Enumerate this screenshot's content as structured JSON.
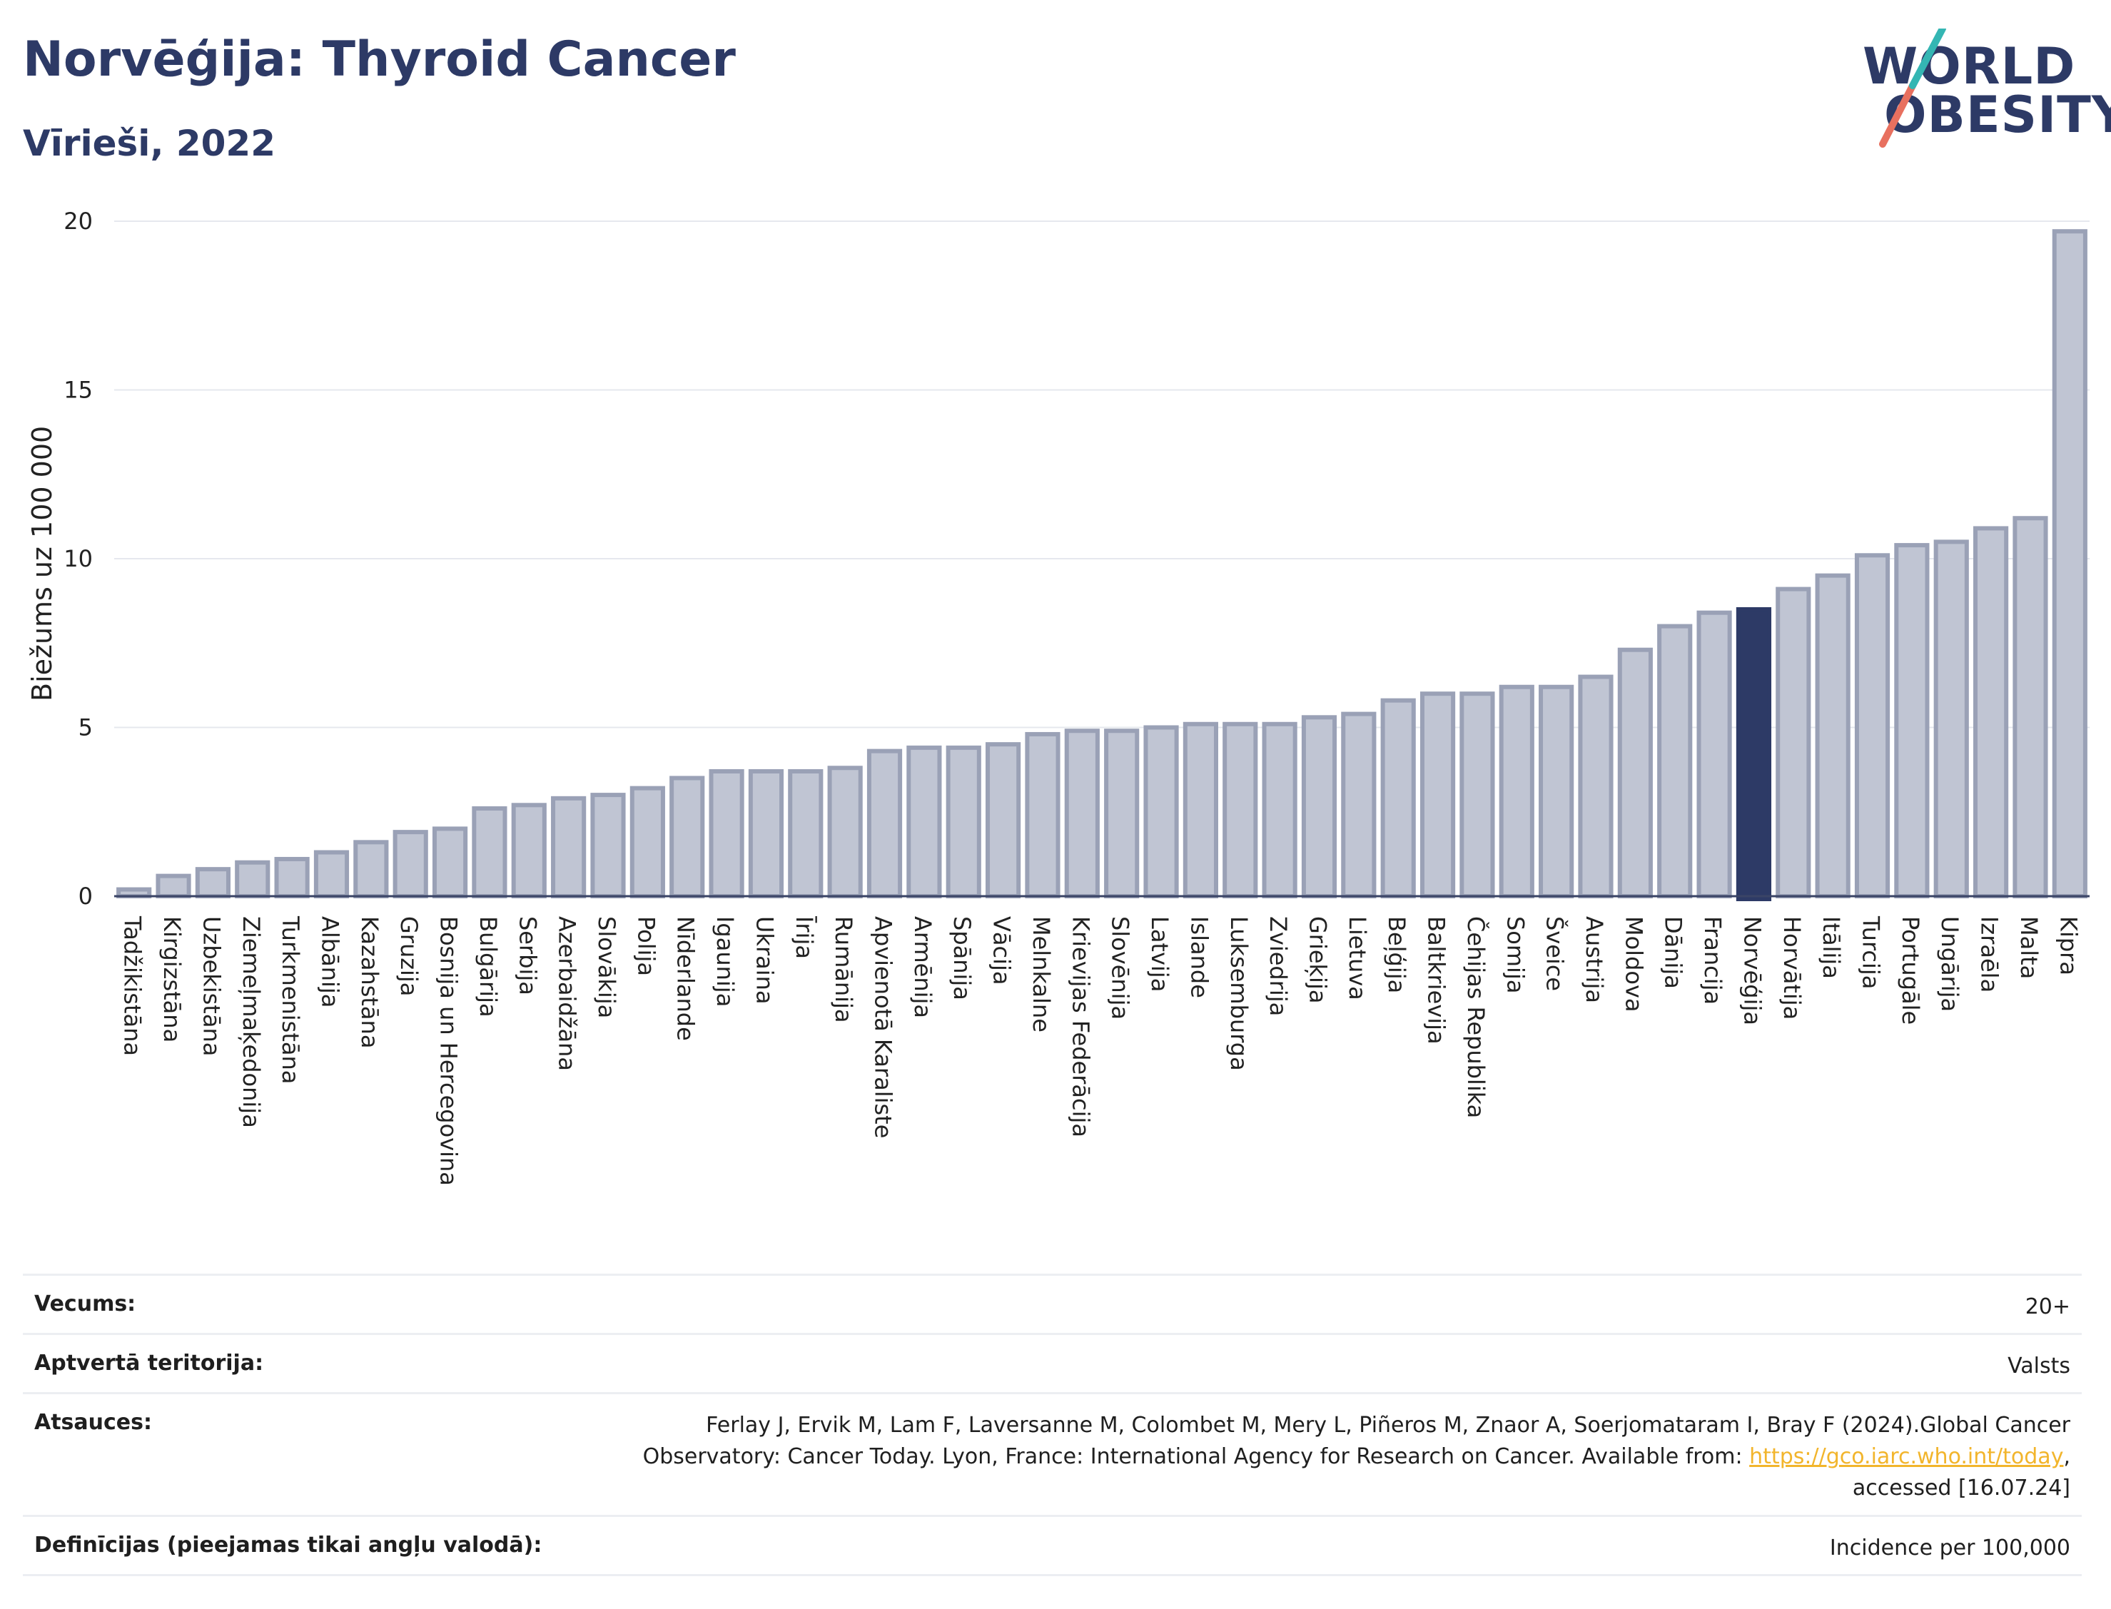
{
  "header": {
    "title": "Norvēģija: Thyroid Cancer",
    "subtitle": "Vīrieši, 2022"
  },
  "logo": {
    "line1": "WORLD",
    "line2": "OBESITY"
  },
  "chart_data": {
    "type": "bar",
    "ylabel": "Biežums uz 100 000",
    "xlabel": "",
    "ylim": [
      0,
      20
    ],
    "yticks": [
      0,
      5,
      10,
      15,
      20
    ],
    "grid": true,
    "highlight": "Norvēģija",
    "colors": {
      "bar": "#c0c5d3",
      "bar_edge": "#9aa1b6",
      "highlight": "#2d3a66",
      "grid": "#e6e8ee",
      "axis": "#3a4466"
    },
    "categories": [
      "Tadžikistāna",
      "Kirgizstāna",
      "Uzbekistāna",
      "Ziemeļmaķedonija",
      "Turkmenistāna",
      "Albānija",
      "Kazahstāna",
      "Gruzija",
      "Bosnija un Hercegovina",
      "Bulgārija",
      "Serbija",
      "Azerbaidžāna",
      "Slovākija",
      "Polija",
      "Nīderlande",
      "Igaunija",
      "Ukraina",
      "Īrija",
      "Rumānija",
      "Apvienotā Karaliste",
      "Armēnija",
      "Spānija",
      "Vācija",
      "Melnkalne",
      "Krievijas Federācija",
      "Slovēnija",
      "Latvija",
      "Islande",
      "Luksemburga",
      "Zviedrija",
      "Grieķija",
      "Lietuva",
      "Beļģija",
      "Baltkrievija",
      "Čehijas Republika",
      "Somija",
      "Šveice",
      "Austrija",
      "Moldova",
      "Dānija",
      "Francija",
      "Norvēģija",
      "Horvātija",
      "Itālija",
      "Turcija",
      "Portugāle",
      "Ungārija",
      "Izraēla",
      "Malta",
      "Kipra"
    ],
    "values": [
      0.2,
      0.6,
      0.8,
      1.0,
      1.1,
      1.3,
      1.6,
      1.9,
      2.0,
      2.6,
      2.7,
      2.9,
      3.0,
      3.2,
      3.5,
      3.7,
      3.7,
      3.7,
      3.8,
      4.3,
      4.4,
      4.4,
      4.5,
      4.8,
      4.9,
      4.9,
      5.0,
      5.1,
      5.1,
      5.1,
      5.3,
      5.4,
      5.8,
      6.0,
      6.0,
      6.2,
      6.2,
      6.5,
      7.3,
      8.0,
      8.4,
      8.5,
      9.1,
      9.5,
      10.1,
      10.4,
      10.5,
      10.9,
      11.2,
      19.7
    ]
  },
  "info": {
    "age_label": "Vecums:",
    "age_value": "20+",
    "coverage_label": "Aptvertā teritorija:",
    "coverage_value": "Valsts",
    "sources_label": "Atsauces:",
    "sources_text_1": "Ferlay J, Ervik M, Lam F, Laversanne M, Colombet M, Mery L, Piñeros M, Znaor A, Soerjomataram I, Bray F (2024).Global Cancer Observatory: Cancer Today. Lyon, France: International Agency for Research on Cancer. Available from: ",
    "sources_link": "https://gco.iarc.who.int/today",
    "sources_text_2": ", accessed [16.07.24]",
    "definitions_label": "Definīcijas (pieejamas tikai angļu valodā):",
    "definitions_value": "Incidence per 100,000"
  }
}
